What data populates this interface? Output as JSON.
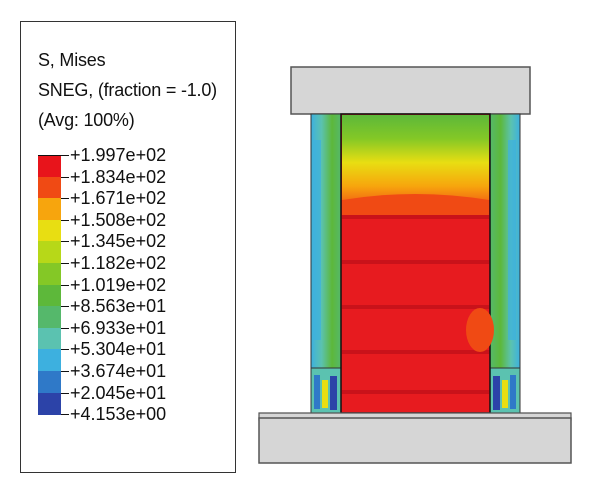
{
  "legend": {
    "title_lines": [
      "S, Mises",
      "SNEG, (fraction = -1.0)",
      "(Avg: 100%)"
    ],
    "values": [
      "+1.997e+02",
      "+1.834e+02",
      "+1.671e+02",
      "+1.508e+02",
      "+1.345e+02",
      "+1.182e+02",
      "+1.019e+02",
      "+8.563e+01",
      "+6.933e+01",
      "+5.304e+01",
      "+3.674e+01",
      "+2.045e+01",
      "+4.153e+00"
    ],
    "colors": [
      "#e8141b",
      "#f04a14",
      "#f7a50d",
      "#e8de12",
      "#b7d818",
      "#84c826",
      "#5db83a",
      "#55b86b",
      "#5bc2b0",
      "#3db0df",
      "#2f79c8",
      "#2c43a8"
    ]
  },
  "model": {
    "plate_color": "#d6d6d6",
    "plate_edge": "#555555",
    "core_color": "#e71b1f"
  }
}
